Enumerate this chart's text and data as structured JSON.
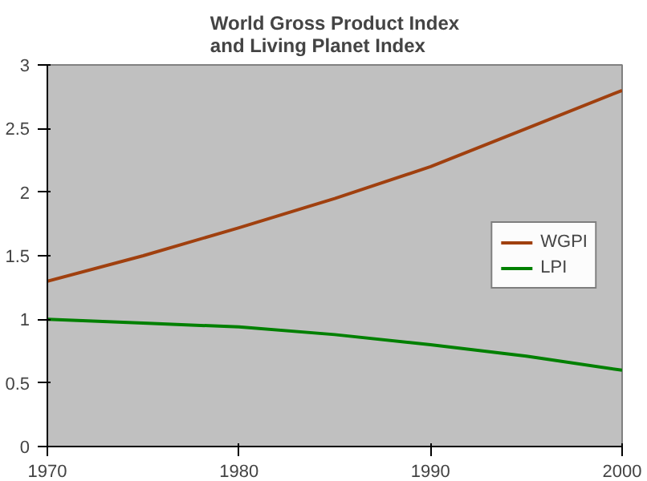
{
  "chart_data": {
    "type": "line",
    "title": "World Gross Product Index\nand Living Planet Index",
    "x": [
      1970,
      1975,
      1980,
      1985,
      1990,
      1995,
      2000
    ],
    "series": [
      {
        "name": "WGPI",
        "color": "#a0400f",
        "values": [
          1.3,
          1.5,
          1.72,
          1.95,
          2.2,
          2.5,
          2.8
        ]
      },
      {
        "name": "LPI",
        "color": "#008000",
        "values": [
          1.0,
          0.97,
          0.94,
          0.88,
          0.8,
          0.71,
          0.6
        ]
      }
    ],
    "xlim": [
      1970,
      2000
    ],
    "xticks": [
      1970,
      1980,
      1990,
      2000
    ],
    "ylim": [
      0,
      3
    ],
    "yticks": [
      0,
      0.5,
      1,
      1.5,
      2,
      2.5,
      3
    ],
    "grid": false,
    "legend": "right",
    "marker": "none",
    "line_style": "solid"
  }
}
